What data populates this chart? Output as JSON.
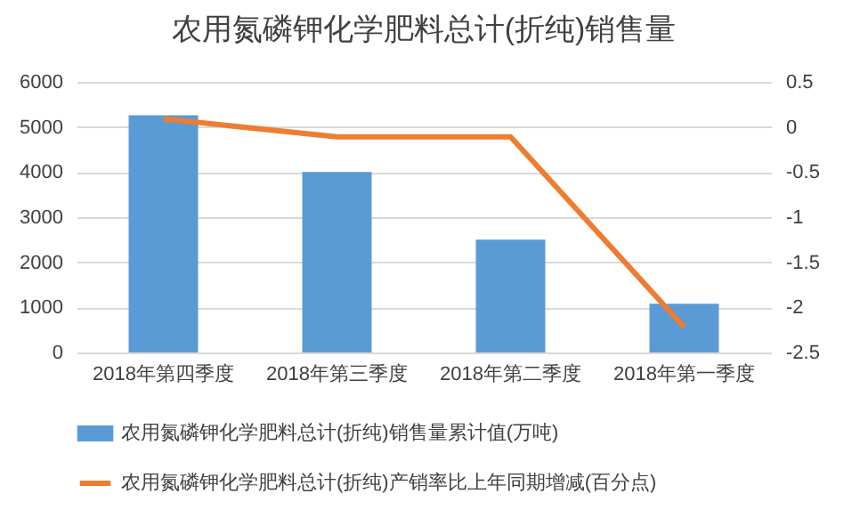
{
  "chart_data": {
    "type": "bar",
    "title": "农用氮磷钾化学肥料总计(折纯)销售量",
    "categories": [
      "2018年第四季度",
      "2018年第三季度",
      "2018年第二季度",
      "2018年第一季度"
    ],
    "series": [
      {
        "name": "农用氮磷钾化学肥料总计(折纯)销售量累计值(万吨)",
        "color": "#5b9bd5",
        "values": [
          5260,
          4000,
          2500,
          1080
        ]
      },
      {
        "name": "农用氮磷钾化学肥料总计(折纯)产销率比上年同期增减(百分点)",
        "type": "line",
        "axis": "y2",
        "color": "#ed7d31",
        "values": [
          0.09,
          -0.11,
          -0.11,
          -2.22
        ]
      }
    ],
    "ylim": [
      0,
      6000
    ],
    "yticks": [
      0,
      1000,
      2000,
      3000,
      4000,
      5000,
      6000
    ],
    "y2lim": [
      -2.5,
      0.5
    ],
    "y2ticks": [
      -2.5,
      -2,
      -1.5,
      -1,
      -0.5,
      0,
      0.5
    ],
    "grid": "y",
    "legend": "bottom"
  }
}
